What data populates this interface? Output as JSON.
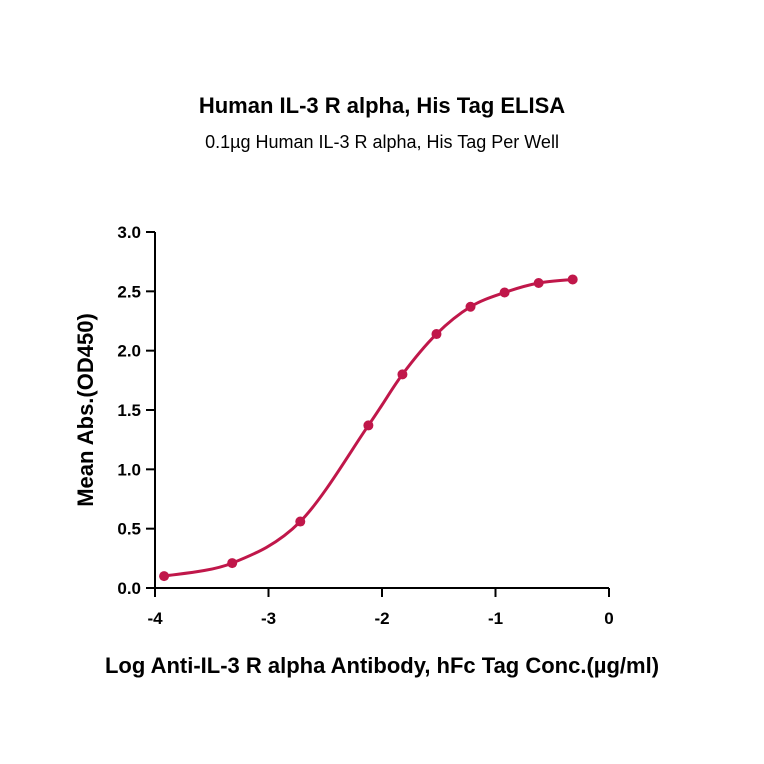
{
  "chart_data": {
    "type": "scatter",
    "title": "Human IL-3 R alpha, His Tag ELISA",
    "subtitle": "0.1µg Human IL-3 R alpha, His Tag Per Well",
    "xlabel": "Log Anti-IL-3 R alpha Antibody, hFc Tag Conc.(µg/ml)",
    "ylabel": "Mean Abs.(OD450)",
    "xlim": [
      -4,
      0
    ],
    "ylim": [
      0,
      3.0
    ],
    "x_ticks": [
      "-4",
      "-3",
      "-2",
      "-1",
      "0"
    ],
    "x_tick_values": [
      -4,
      -3,
      -2,
      -1,
      0
    ],
    "y_ticks": [
      "0.0",
      "0.5",
      "1.0",
      "1.5",
      "2.0",
      "2.5",
      "3.0"
    ],
    "y_tick_values": [
      0,
      0.5,
      1.0,
      1.5,
      2.0,
      2.5,
      3.0
    ],
    "grid": false,
    "color": "#c0174a",
    "series": [
      {
        "x": [
          -3.92,
          -3.32,
          -2.72,
          -2.12,
          -1.82,
          -1.52,
          -1.22,
          -0.92,
          -0.62,
          -0.32
        ],
        "y": [
          0.1,
          0.21,
          0.56,
          1.37,
          1.8,
          2.14,
          2.37,
          2.49,
          2.57,
          2.6
        ]
      }
    ]
  }
}
